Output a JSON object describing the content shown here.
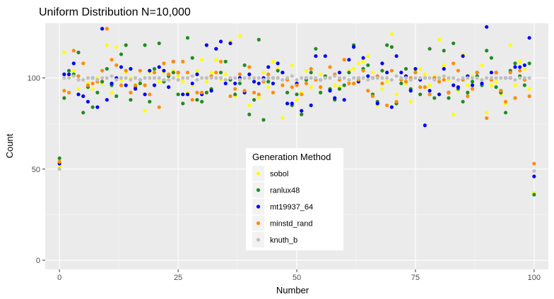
{
  "chart_data": {
    "type": "scatter",
    "title": "Uniform Distribution  N=10,000",
    "xlabel": "Number",
    "ylabel": "Count",
    "xlim": [
      -3,
      103
    ],
    "ylim": [
      -5,
      130
    ],
    "x_ticks": [
      0,
      25,
      50,
      75,
      100
    ],
    "y_ticks": [
      0,
      50,
      100
    ],
    "x_tick_labels": [
      "0",
      "25",
      "50",
      "75",
      "100"
    ],
    "y_tick_labels": [
      "0",
      "50",
      "100"
    ],
    "grid": true,
    "legend": {
      "title": "Generation Method",
      "placement": "center-bottom"
    },
    "series": [
      {
        "name": "sobol",
        "color": "#ffff00",
        "values": [
          51,
          114,
          101,
          104,
          94,
          99,
          97,
          94,
          100,
          97,
          118,
          92,
          117,
          99,
          103,
          100,
          96,
          98,
          82,
          103,
          100,
          98,
          103,
          102,
          104,
          101,
          98,
          92,
          96,
          104,
          110,
          98,
          103,
          110,
          99,
          102,
          120,
          90,
          123,
          92,
          85,
          100,
          89,
          103,
          95,
          109,
          105,
          78,
          100,
          107,
          88,
          92,
          104,
          95,
          99,
          102,
          101,
          100,
          96,
          95,
          110,
          104,
          105,
          108,
          109,
          112,
          103,
          85,
          94,
          98,
          124,
          91,
          100,
          97,
          87,
          104,
          105,
          102,
          96,
          101,
          121,
          107,
          99,
          80,
          93,
          113,
          96,
          101,
          103,
          107,
          81,
          96,
          98,
          91,
          86,
          118,
          96,
          109,
          105,
          94,
          37
        ]
      },
      {
        "name": "ranlux48",
        "color": "#228b22",
        "values": [
          56,
          89,
          104,
          102,
          114,
          81,
          95,
          84,
          92,
          98,
          105,
          96,
          90,
          113,
          118,
          88,
          95,
          97,
          118,
          87,
          105,
          119,
          98,
          101,
          103,
          91,
          86,
          122,
          111,
          88,
          87,
          92,
          94,
          116,
          103,
          109,
          99,
          91,
          97,
          107,
          80,
          88,
          121,
          77,
          98,
          100,
          104,
          103,
          92,
          85,
          91,
          80,
          99,
          103,
          116,
          92,
          101,
          94,
          88,
          94,
          96,
          103,
          118,
          100,
          105,
          107,
          91,
          87,
          104,
          118,
          117,
          86,
          97,
          105,
          94,
          103,
          91,
          100,
          116,
          89,
          100,
          115,
          89,
          119,
          94,
          87,
          92,
          98,
          101,
          96,
          115,
          111,
          95,
          92,
          81,
          104,
          108,
          101,
          96,
          108,
          36
        ]
      },
      {
        "name": "mt19937_64",
        "color": "#0000ff",
        "values": [
          53,
          102,
          102,
          108,
          91,
          90,
          87,
          100,
          84,
          127,
          88,
          97,
          100,
          106,
          96,
          105,
          94,
          99,
          91,
          104,
          96,
          106,
          104,
          95,
          109,
          103,
          91,
          91,
          97,
          102,
          91,
          118,
          93,
          116,
          120,
          97,
          119,
          97,
          100,
          92,
          102,
          98,
          97,
          100,
          106,
          97,
          108,
          103,
          86,
          86,
          97,
          82,
          100,
          85,
          112,
          99,
          112,
          93,
          89,
          103,
          88,
          110,
          117,
          98,
          111,
          101,
          100,
          86,
          108,
          103,
          84,
          112,
          103,
          101,
          93,
          105,
          99,
          74,
          93,
          100,
          91,
          105,
          92,
          96,
          95,
          112,
          101,
          96,
          103,
          97,
          128,
          103,
          103,
          93,
          100,
          100,
          106,
          106,
          107,
          122,
          46
        ]
      },
      {
        "name": "minstd_rand",
        "color": "#ff8c00",
        "values": [
          54,
          93,
          92,
          115,
          101,
          108,
          96,
          97,
          98,
          104,
          127,
          110,
          107,
          96,
          104,
          92,
          96,
          104,
          96,
          91,
          103,
          84,
          108,
          102,
          109,
          103,
          109,
          103,
          88,
          92,
          92,
          100,
          101,
          103,
          109,
          99,
          90,
          94,
          102,
          93,
          106,
          92,
          91,
          98,
          102,
          92,
          100,
          96,
          99,
          95,
          96,
          91,
          97,
          105,
          99,
          95,
          100,
          106,
          102,
          99,
          110,
          97,
          97,
          99,
          104,
          93,
          90,
          101,
          97,
          85,
          104,
          87,
          99,
          98,
          100,
          103,
          95,
          95,
          91,
          100,
          98,
          99,
          92,
          108,
          104,
          99,
          90,
          94,
          103,
          99,
          78,
          99,
          103,
          93,
          87,
          103,
          89,
          104,
          99,
          90,
          53
        ]
      },
      {
        "name": "knuth_b",
        "color": "#c0c0c0",
        "values": [
          50,
          100,
          100,
          101,
          99,
          99,
          100,
          100,
          99,
          100,
          100,
          101,
          99,
          100,
          100,
          99,
          100,
          99,
          100,
          100,
          100,
          100,
          99,
          99,
          100,
          99,
          100,
          100,
          101,
          99,
          100,
          100,
          100,
          100,
          100,
          99,
          100,
          100,
          99,
          100,
          100,
          100,
          100,
          99,
          100,
          100,
          100,
          99,
          100,
          101,
          99,
          100,
          100,
          100,
          100,
          99,
          100,
          100,
          101,
          100,
          100,
          99,
          100,
          100,
          100,
          99,
          100,
          100,
          100,
          100,
          99,
          101,
          100,
          100,
          99,
          100,
          100,
          100,
          100,
          99,
          100,
          101,
          100,
          100,
          99,
          100,
          100,
          100,
          100,
          99,
          100,
          100,
          100,
          100,
          100,
          100,
          99,
          100,
          100,
          100,
          49
        ]
      }
    ]
  }
}
